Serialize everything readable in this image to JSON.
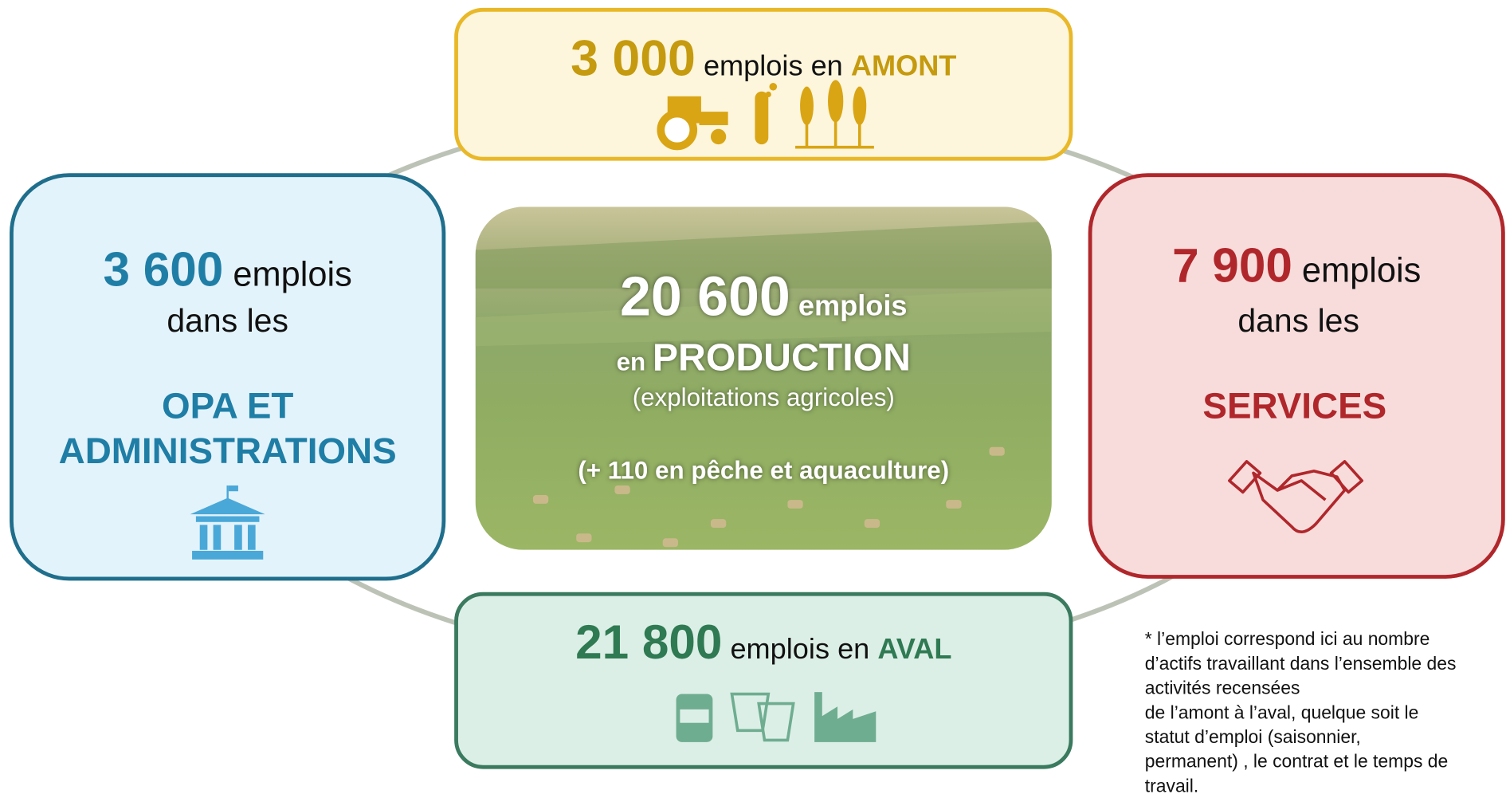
{
  "amont": {
    "number": "3 000",
    "text": "emplois en",
    "label": "AMONT"
  },
  "opa": {
    "number": "3 600",
    "text": "emplois",
    "line2": "dans les",
    "label_lines": [
      "OPA ET",
      "ADMINISTRATIONS"
    ]
  },
  "production": {
    "number": "20 600",
    "text": "emplois",
    "prefix": "en",
    "label": "PRODUCTION",
    "sub": "(exploitations agricoles)",
    "extra": "(+ 110 en pêche et aquaculture)"
  },
  "services": {
    "number": "7 900",
    "text": "emplois",
    "line2": "dans les",
    "label": "SERVICES"
  },
  "aval": {
    "number": "21 800",
    "text": "emplois en",
    "label": "AVAL"
  },
  "footnote": [
    "* l’emploi correspond ici au nombre",
    "d’actifs travaillant dans l’ensemble des",
    "activités recensées",
    "de l’amont à l’aval, quelque soit le",
    "statut d’emploi (saisonnier,",
    "permanent) , le contrat et le temps de",
    "travail."
  ]
}
